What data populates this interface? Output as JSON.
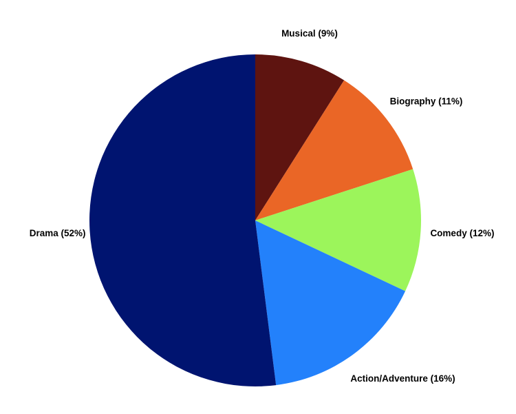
{
  "chart_data": {
    "type": "pie",
    "title": "",
    "start_angle_deg": 0,
    "direction": "clockwise",
    "slices": [
      {
        "label": "Musical (9%)",
        "name": "Musical",
        "value": 9,
        "color": "#5e1410"
      },
      {
        "label": "Biography (11%)",
        "name": "Biography",
        "value": 11,
        "color": "#ea6626"
      },
      {
        "label": "Comedy (12%)",
        "name": "Comedy",
        "value": 12,
        "color": "#9cf55b"
      },
      {
        "label": "Action/Adventure (16%)",
        "name": "Action/Adventure",
        "value": 16,
        "color": "#2381fb"
      },
      {
        "label": "Drama (52%)",
        "name": "Drama",
        "value": 52,
        "color": "#001470"
      }
    ],
    "legend": "none"
  }
}
